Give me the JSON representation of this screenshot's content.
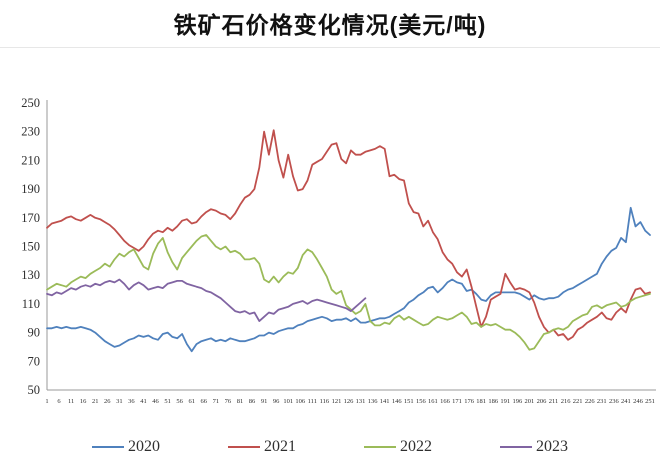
{
  "title": "铁矿石价格变化情况(美元/吨)",
  "chart_data": {
    "type": "line",
    "title": "铁矿石价格变化情况(美元/吨)",
    "grid": false,
    "legend_position": "bottom",
    "x_axis": {
      "min": 1,
      "max": 251,
      "tick_labels": [
        1,
        6,
        11,
        16,
        21,
        26,
        31,
        36,
        41,
        46,
        51,
        56,
        61,
        66,
        71,
        76,
        81,
        86,
        91,
        96,
        101,
        106,
        111,
        116,
        121,
        126,
        131,
        136,
        141,
        146,
        151,
        156,
        161,
        166,
        171,
        176,
        181,
        186,
        191,
        196,
        201,
        206,
        211,
        216,
        221,
        226,
        231,
        236,
        241,
        246,
        251
      ]
    },
    "y_axis": {
      "min": 50,
      "max": 250,
      "ticks": [
        50,
        70,
        90,
        110,
        130,
        150,
        170,
        190,
        210,
        230,
        250
      ]
    },
    "x_start": 1,
    "x_step": 2,
    "series": [
      {
        "name": "2020",
        "color": "#4F81BD",
        "values": [
          93,
          93,
          94,
          93,
          94,
          93,
          93,
          94,
          93,
          92,
          90,
          87,
          84,
          82,
          80,
          81,
          83,
          85,
          86,
          88,
          87,
          88,
          86,
          85,
          89,
          90,
          87,
          86,
          89,
          82,
          77,
          82,
          84,
          85,
          86,
          84,
          85,
          84,
          86,
          85,
          84,
          84,
          85,
          86,
          88,
          88,
          90,
          89,
          91,
          92,
          93,
          93,
          95,
          96,
          98,
          99,
          100,
          101,
          100,
          98,
          99,
          99,
          100,
          98,
          100,
          97,
          97,
          98,
          99,
          100,
          100,
          101,
          103,
          105,
          107,
          111,
          113,
          116,
          118,
          121,
          122,
          118,
          121,
          125,
          127,
          125,
          124,
          119,
          120,
          117,
          113,
          112,
          116,
          118,
          118,
          118,
          118,
          118,
          117,
          115,
          113,
          116,
          114,
          113,
          114,
          114,
          115,
          118,
          120,
          121,
          123,
          125,
          127,
          129,
          131,
          138,
          143,
          147,
          149,
          156,
          153,
          177,
          164,
          167,
          161,
          158
        ]
      },
      {
        "name": "2021",
        "color": "#C0504D",
        "values": [
          163,
          166,
          167,
          168,
          170,
          171,
          169,
          168,
          170,
          172,
          170,
          169,
          167,
          165,
          162,
          158,
          154,
          151,
          149,
          147,
          150,
          155,
          159,
          161,
          160,
          163,
          161,
          164,
          168,
          169,
          166,
          167,
          171,
          174,
          176,
          175,
          173,
          172,
          169,
          173,
          179,
          184,
          186,
          190,
          205,
          230,
          214,
          231,
          210,
          198,
          214,
          199,
          189,
          190,
          196,
          207,
          209,
          211,
          216,
          221,
          222,
          211,
          208,
          217,
          214,
          214,
          216,
          217,
          218,
          220,
          218,
          199,
          200,
          197,
          196,
          180,
          174,
          173,
          164,
          168,
          160,
          155,
          146,
          141,
          138,
          132,
          129,
          134,
          122,
          108,
          94,
          101,
          113,
          115,
          117,
          131,
          125,
          120,
          121,
          120,
          118,
          111,
          101,
          94,
          90,
          92,
          88,
          89,
          85,
          87,
          92,
          94,
          97,
          99,
          101,
          104,
          100,
          99,
          104,
          107,
          104,
          113,
          120,
          121,
          117,
          118
        ]
      },
      {
        "name": "2022",
        "color": "#9BBB59",
        "values": [
          120,
          122,
          124,
          123,
          122,
          125,
          127,
          129,
          128,
          131,
          133,
          135,
          138,
          136,
          141,
          145,
          143,
          146,
          148,
          142,
          136,
          134,
          145,
          152,
          156,
          146,
          139,
          134,
          142,
          146,
          150,
          154,
          157,
          158,
          154,
          150,
          148,
          150,
          146,
          147,
          145,
          141,
          141,
          142,
          138,
          127,
          125,
          129,
          125,
          129,
          132,
          131,
          135,
          144,
          148,
          146,
          141,
          135,
          129,
          120,
          117,
          119,
          109,
          106,
          103,
          105,
          110,
          98,
          95,
          95,
          97,
          96,
          100,
          102,
          99,
          101,
          99,
          97,
          95,
          96,
          99,
          101,
          100,
          99,
          100,
          102,
          104,
          101,
          96,
          97,
          94,
          96,
          95,
          96,
          94,
          92,
          92,
          90,
          87,
          83,
          78,
          79,
          84,
          89,
          90,
          92,
          93,
          92,
          94,
          98,
          100,
          102,
          103,
          108,
          109,
          107,
          109,
          110,
          111,
          108,
          109,
          112,
          114,
          115,
          116,
          117
        ]
      },
      {
        "name": "2023",
        "color": "#8064A2",
        "values": [
          117,
          116,
          118,
          117,
          119,
          121,
          120,
          122,
          123,
          122,
          124,
          123,
          125,
          126,
          125,
          127,
          124,
          120,
          123,
          125,
          123,
          120,
          121,
          122,
          121,
          124,
          125,
          126,
          126,
          124,
          123,
          122,
          121,
          119,
          118,
          116,
          114,
          111,
          108,
          105,
          104,
          105,
          103,
          104,
          98,
          101,
          104,
          103,
          106,
          107,
          108,
          110,
          111,
          112,
          110,
          112,
          113,
          112,
          111,
          110,
          109,
          108,
          107,
          105,
          108,
          111,
          114
        ]
      }
    ]
  }
}
